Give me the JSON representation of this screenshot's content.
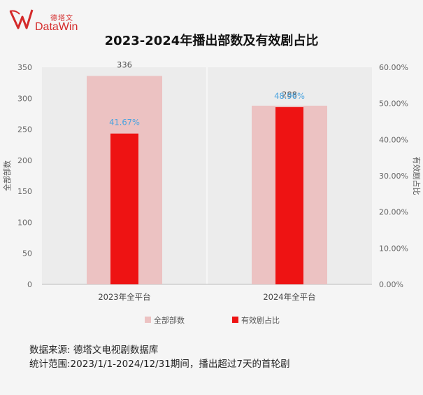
{
  "logo": {
    "cn_text": "德塔文",
    "en_text": "DataWin",
    "brand_color": "#d42a2a"
  },
  "title": "2023-2024年播出部数及有效剧占比",
  "chart_data": {
    "type": "bar",
    "title": "2023-2024年播出部数及有效剧占比",
    "categories": [
      "2023年全平台",
      "2024年全平台"
    ],
    "series": [
      {
        "name": "全部部数",
        "axis": "left",
        "values": [
          336,
          288
        ],
        "labels": [
          "336",
          "288"
        ],
        "color": "#ecc2c2",
        "label_color": "#555555"
      },
      {
        "name": "有效剧占比",
        "axis": "right",
        "values": [
          41.67,
          48.96
        ],
        "labels": [
          "41.67%",
          "48.96%"
        ],
        "color": "#ee1313",
        "label_color": "#4aa3df"
      }
    ],
    "ylabel": "全部部数",
    "y2label": "有效剧占比",
    "ylim": [
      0,
      350
    ],
    "yticks": [
      "0",
      "50",
      "100",
      "150",
      "200",
      "250",
      "300",
      "350"
    ],
    "y2lim": [
      0,
      60
    ],
    "y2ticks": [
      "0.00%",
      "10.00%",
      "20.00%",
      "30.00%",
      "40.00%",
      "50.00%",
      "60.00%"
    ],
    "grid": false,
    "legend": "bottom-center"
  },
  "footer": {
    "source": "数据来源: 德塔文电视剧数据库",
    "scope": "统计范围:2023/1/1-2024/12/31期间，播出超过7天的首轮剧"
  }
}
